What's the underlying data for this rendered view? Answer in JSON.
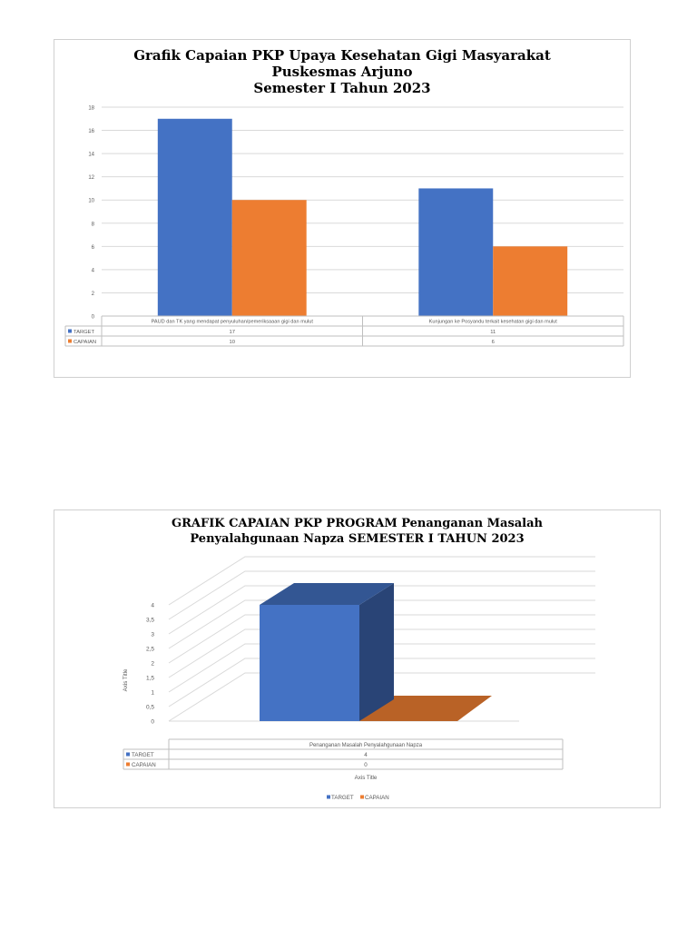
{
  "charts": [
    {
      "title_lines": [
        "Grafik Capaian PKP Upaya Kesehatan Gigi Masyarakat",
        "Puskesmas Arjuno",
        "Semester I Tahun 2023"
      ]
    },
    {
      "title_lines": [
        "GRAFIK CAPAIAN PKP PROGRAM Penanganan Masalah",
        "Penyalahgunaan Napza SEMESTER I TAHUN 2023"
      ],
      "y_axis_title": "Axis Title",
      "x_axis_title": "Axis Title",
      "legend": [
        "TARGET",
        "CAPAIAN"
      ]
    }
  ],
  "chart_data": [
    {
      "type": "bar",
      "title": "Grafik Capaian PKP Upaya Kesehatan Gigi Masyarakat Puskesmas Arjuno Semester I Tahun 2023",
      "categories": [
        "PAUD dan TK yang mendapat penyuluhan/pemeriksaaan gigi dan mulut",
        "Kunjungan ke Posyandu terkait kesehatan gigi dan mulut"
      ],
      "series": [
        {
          "name": "TARGET",
          "values": [
            17,
            11
          ],
          "color": "#4472C4"
        },
        {
          "name": "CAPAIAN",
          "values": [
            10,
            6
          ],
          "color": "#ED7D31"
        }
      ],
      "ylim": [
        0,
        18
      ],
      "yticks": [
        0,
        2,
        4,
        6,
        8,
        10,
        12,
        14,
        16,
        18
      ],
      "ytick_labels": [
        "0",
        "2",
        "4",
        "6",
        "8",
        "10",
        "12",
        "14",
        "16",
        "18"
      ],
      "grid": true,
      "data_table": true
    },
    {
      "type": "bar",
      "style": "3d",
      "title": "GRAFIK CAPAIAN PKP PROGRAM Penanganan Masalah Penyalahgunaan Napza SEMESTER I TAHUN 2023",
      "categories": [
        "Penanganan Masalah Penyalahgunaan Napza"
      ],
      "series": [
        {
          "name": "TARGET",
          "values": [
            4
          ],
          "color": "#4472C4"
        },
        {
          "name": "CAPAIAN",
          "values": [
            0
          ],
          "color": "#ED7D31"
        }
      ],
      "ylim": [
        0,
        4
      ],
      "yticks": [
        0,
        0.5,
        1,
        1.5,
        2,
        2.5,
        3,
        3.5,
        4
      ],
      "ytick_labels": [
        "0",
        "0,5",
        "1",
        "1,5",
        "2",
        "2,5",
        "3",
        "3,5",
        "4"
      ],
      "xlabel": "Axis Title",
      "ylabel": "Axis Title",
      "grid": true,
      "legend_position": "bottom",
      "data_table": true
    }
  ]
}
